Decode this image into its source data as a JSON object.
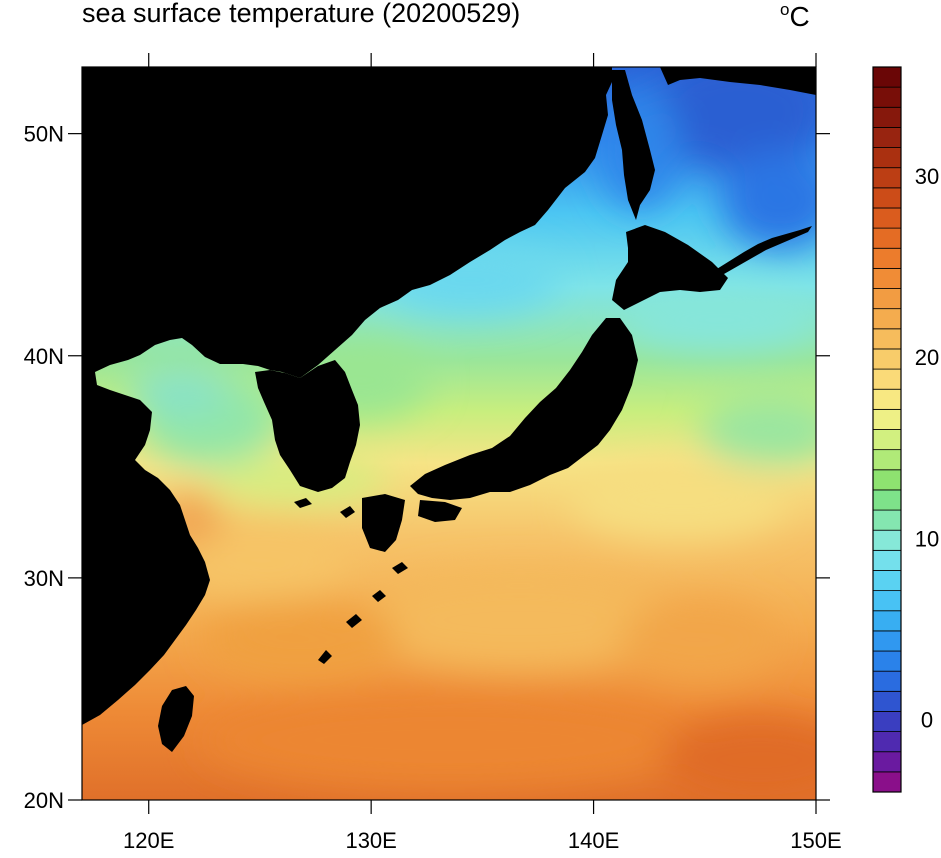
{
  "title": "sea surface temperature (20200529)",
  "unit": {
    "degree": "o",
    "letter": "C"
  },
  "map": {
    "projection": "cylindrical-equidistant",
    "lon_range": [
      117,
      150
    ],
    "lat_range": [
      20,
      53
    ],
    "land_color": "#000000",
    "lat_ticks": [
      {
        "value": 20,
        "label": "20N"
      },
      {
        "value": 30,
        "label": "30N"
      },
      {
        "value": 40,
        "label": "40N"
      },
      {
        "value": 50,
        "label": "50N"
      }
    ],
    "lon_ticks": [
      {
        "value": 120,
        "label": "120E"
      },
      {
        "value": 130,
        "label": "130E"
      },
      {
        "value": 140,
        "label": "140E"
      },
      {
        "value": 150,
        "label": "150E"
      }
    ]
  },
  "colorbar": {
    "range": [
      -4,
      36
    ],
    "interval": 1,
    "labels": [
      {
        "value": 0,
        "label": "0"
      },
      {
        "value": 10,
        "label": "10"
      },
      {
        "value": 20,
        "label": "20"
      },
      {
        "value": 30,
        "label": "30"
      }
    ],
    "colors": [
      "#8a0f8a",
      "#6a1aa0",
      "#4f2ab0",
      "#3a3ec0",
      "#2f55d0",
      "#2a6ce0",
      "#2a82ea",
      "#3098f0",
      "#38aef2",
      "#48c2f4",
      "#5ad2f2",
      "#74e0ec",
      "#86e8d8",
      "#84e6b0",
      "#7ee28a",
      "#8ee270",
      "#b0ea78",
      "#d2f080",
      "#eef086",
      "#f8e882",
      "#fada78",
      "#f8cc6a",
      "#f6bc5c",
      "#f4ac4e",
      "#f29c42",
      "#f08c36",
      "#ec7c2c",
      "#e46c24",
      "#da5c1e",
      "#cc4c18",
      "#bc3e14",
      "#aa3010",
      "#982410",
      "#86180c",
      "#780e08",
      "#6a0606"
    ]
  }
}
